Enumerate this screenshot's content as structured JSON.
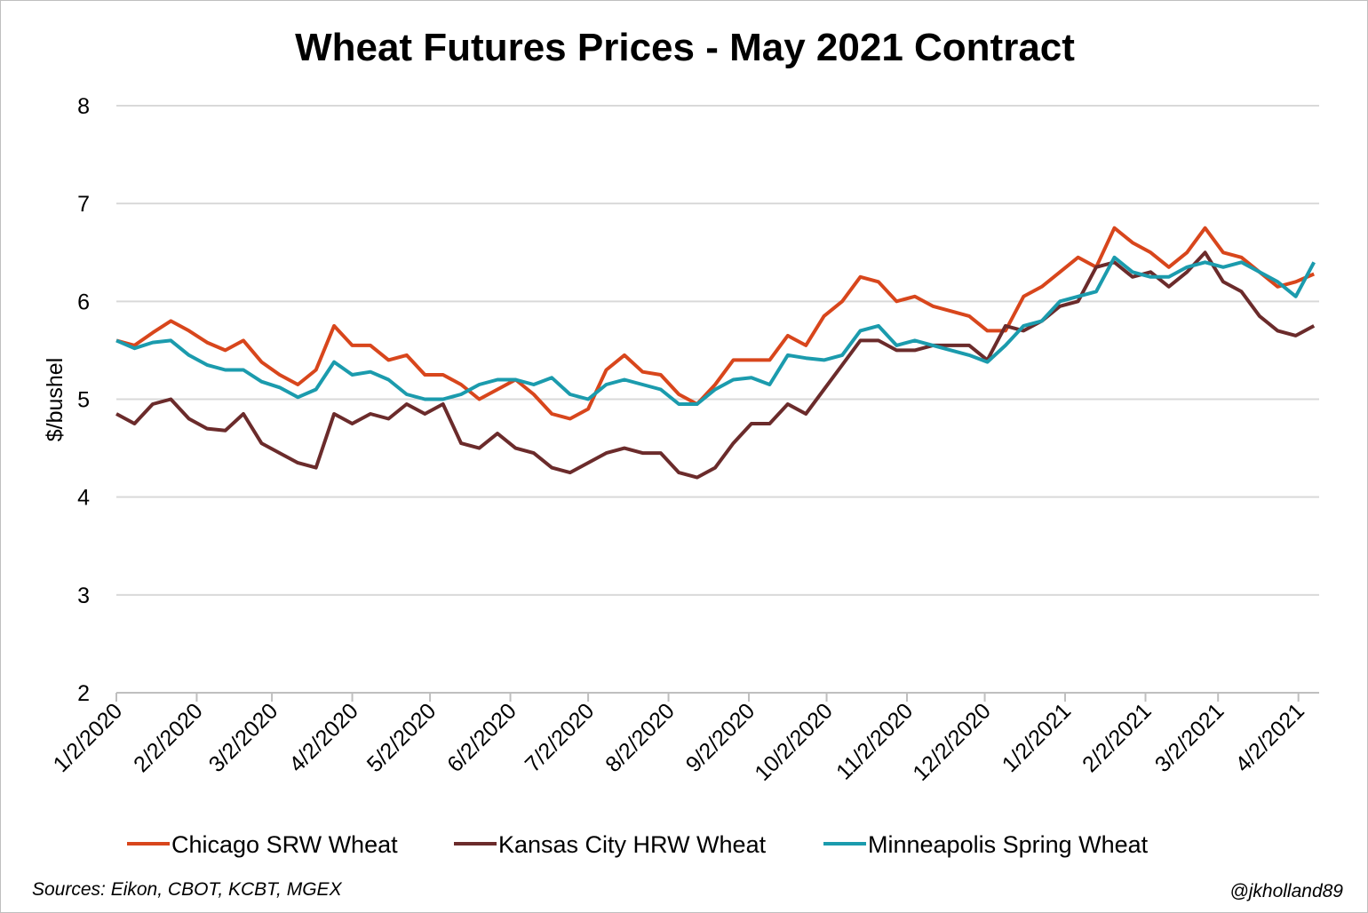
{
  "chart_data": {
    "type": "line",
    "title": "Wheat Futures Prices - May 2021 Contract",
    "xlabel": "",
    "ylabel": "$/bushel",
    "ylim": [
      2,
      8
    ],
    "yticks": [
      "2",
      "3",
      "4",
      "5",
      "6",
      "7",
      "8"
    ],
    "x_start_date": "1/2/2020",
    "x_step_days": 7,
    "xlim_days": [
      0,
      464
    ],
    "xticks": [
      {
        "label": "1/2/2020",
        "day": 0
      },
      {
        "label": "2/2/2020",
        "day": 31
      },
      {
        "label": "3/2/2020",
        "day": 60
      },
      {
        "label": "4/2/2020",
        "day": 91
      },
      {
        "label": "5/2/2020",
        "day": 121
      },
      {
        "label": "6/2/2020",
        "day": 152
      },
      {
        "label": "7/2/2020",
        "day": 182
      },
      {
        "label": "8/2/2020",
        "day": 213
      },
      {
        "label": "9/2/2020",
        "day": 244
      },
      {
        "label": "10/2/2020",
        "day": 274
      },
      {
        "label": "11/2/2020",
        "day": 305
      },
      {
        "label": "12/2/2020",
        "day": 335
      },
      {
        "label": "1/2/2021",
        "day": 366
      },
      {
        "label": "2/2/2021",
        "day": 397
      },
      {
        "label": "3/2/2021",
        "day": 425
      },
      {
        "label": "4/2/2021",
        "day": 456
      }
    ],
    "grid": true,
    "legend_position": "bottom",
    "series": [
      {
        "name": "Chicago SRW Wheat",
        "color": "#D8461C",
        "values": [
          5.6,
          5.55,
          5.68,
          5.8,
          5.7,
          5.58,
          5.5,
          5.6,
          5.38,
          5.25,
          5.15,
          5.3,
          5.75,
          5.55,
          5.55,
          5.4,
          5.45,
          5.25,
          5.25,
          5.15,
          5.0,
          5.1,
          5.2,
          5.05,
          4.85,
          4.8,
          4.9,
          5.3,
          5.45,
          5.28,
          5.25,
          5.05,
          4.95,
          5.15,
          5.4,
          5.4,
          5.4,
          5.65,
          5.55,
          5.85,
          6.0,
          6.25,
          6.2,
          6.0,
          6.05,
          5.95,
          5.9,
          5.85,
          5.7,
          5.7,
          6.05,
          6.15,
          6.3,
          6.45,
          6.35,
          6.75,
          6.6,
          6.5,
          6.35,
          6.5,
          6.75,
          6.5,
          6.45,
          6.3,
          6.15,
          6.2,
          6.28
        ]
      },
      {
        "name": "Kansas City HRW Wheat",
        "color": "#6B2B2B",
        "values": [
          4.85,
          4.75,
          4.95,
          5.0,
          4.8,
          4.7,
          4.68,
          4.85,
          4.55,
          4.45,
          4.35,
          4.3,
          4.85,
          4.75,
          4.85,
          4.8,
          4.95,
          4.85,
          4.95,
          4.55,
          4.5,
          4.65,
          4.5,
          4.45,
          4.3,
          4.25,
          4.35,
          4.45,
          4.5,
          4.45,
          4.45,
          4.25,
          4.2,
          4.3,
          4.55,
          4.75,
          4.75,
          4.95,
          4.85,
          5.1,
          5.35,
          5.6,
          5.6,
          5.5,
          5.5,
          5.55,
          5.55,
          5.55,
          5.4,
          5.75,
          5.7,
          5.8,
          5.95,
          6.0,
          6.35,
          6.4,
          6.25,
          6.3,
          6.15,
          6.3,
          6.5,
          6.2,
          6.1,
          5.85,
          5.7,
          5.65,
          5.75
        ]
      },
      {
        "name": "Minneapolis Spring Wheat",
        "color": "#1B9BAD",
        "values": [
          5.6,
          5.52,
          5.58,
          5.6,
          5.45,
          5.35,
          5.3,
          5.3,
          5.18,
          5.12,
          5.02,
          5.1,
          5.38,
          5.25,
          5.28,
          5.2,
          5.05,
          5.0,
          5.0,
          5.05,
          5.15,
          5.2,
          5.2,
          5.15,
          5.22,
          5.05,
          5.0,
          5.15,
          5.2,
          5.15,
          5.1,
          4.95,
          4.95,
          5.1,
          5.2,
          5.22,
          5.15,
          5.45,
          5.42,
          5.4,
          5.45,
          5.7,
          5.75,
          5.55,
          5.6,
          5.55,
          5.5,
          5.45,
          5.38,
          5.55,
          5.75,
          5.8,
          6.0,
          6.05,
          6.1,
          6.45,
          6.3,
          6.25,
          6.25,
          6.35,
          6.4,
          6.35,
          6.4,
          6.3,
          6.2,
          6.05,
          6.4
        ]
      }
    ],
    "source_note": "Sources: Eikon, CBOT, KCBT, MGEX",
    "credit": "@jkholland89"
  }
}
